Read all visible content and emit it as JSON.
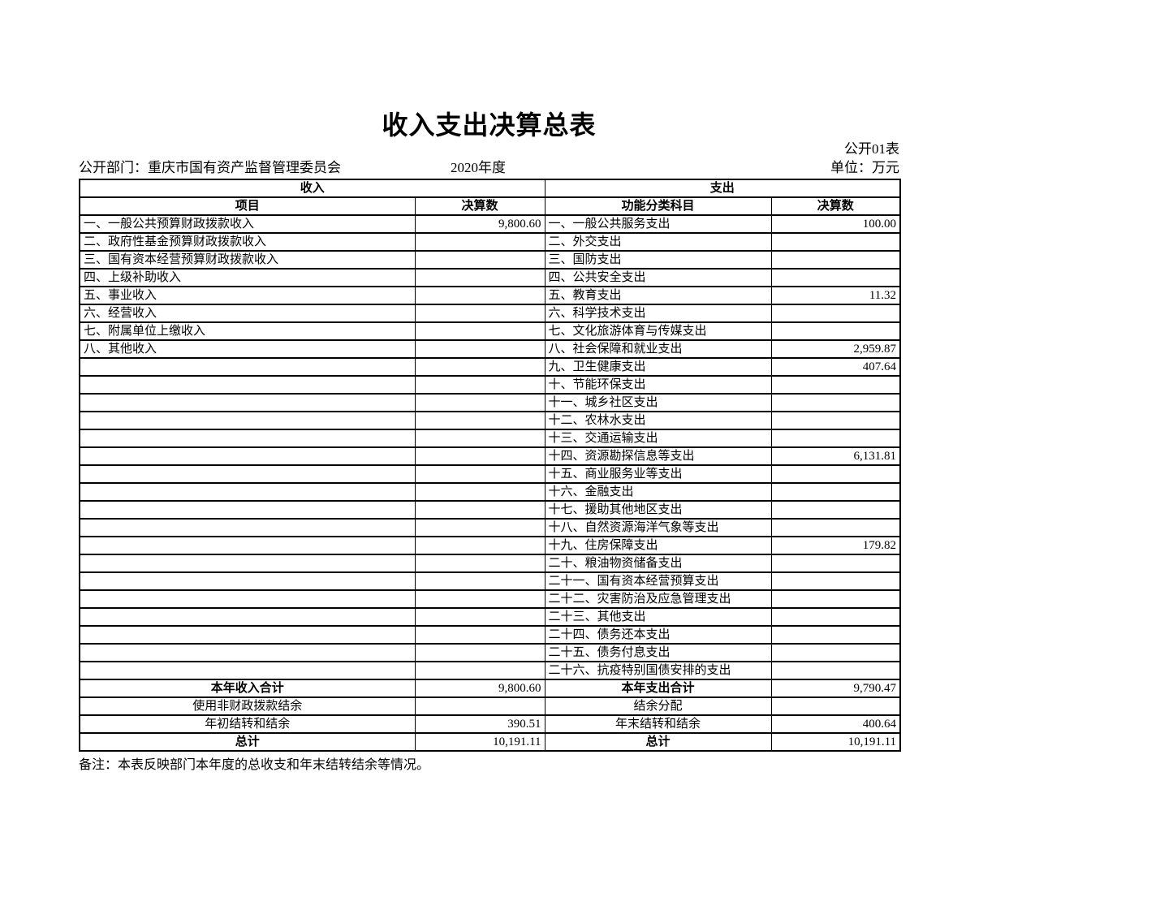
{
  "colors": {
    "text": "#000000",
    "background": "#ffffff",
    "border": "#000000"
  },
  "page": {
    "title": "收入支出决算总表",
    "table_code": "公开01表",
    "department": "公开部门：重庆市国有资产监督管理委员会",
    "year": "2020年度",
    "unit": "单位：万元",
    "note": "备注：本表反映部门本年度的总收支和年末结转结余等情况。"
  },
  "table": {
    "income_section": "收入",
    "expense_section": "支出",
    "columns": [
      "项目",
      "决算数",
      "功能分类科目",
      "决算数"
    ],
    "rows": [
      {
        "income": "一、一般公共预算财政拨款收入",
        "income_value": "9,800.60",
        "expense": "一、一般公共服务支出",
        "expense_value": "100.00"
      },
      {
        "income": "二、政府性基金预算财政拨款收入",
        "income_value": "",
        "expense": "二、外交支出",
        "expense_value": ""
      },
      {
        "income": "三、国有资本经营预算财政拨款收入",
        "income_value": "",
        "expense": "三、国防支出",
        "expense_value": ""
      },
      {
        "income": "四、上级补助收入",
        "income_value": "",
        "expense": "四、公共安全支出",
        "expense_value": ""
      },
      {
        "income": "五、事业收入",
        "income_value": "",
        "expense": "五、教育支出",
        "expense_value": "11.32"
      },
      {
        "income": "六、经营收入",
        "income_value": "",
        "expense": "六、科学技术支出",
        "expense_value": ""
      },
      {
        "income": "七、附属单位上缴收入",
        "income_value": "",
        "expense": "七、文化旅游体育与传媒支出",
        "expense_value": ""
      },
      {
        "income": "八、其他收入",
        "income_value": "",
        "expense": "八、社会保障和就业支出",
        "expense_value": "2,959.87"
      },
      {
        "income": "",
        "income_value": "",
        "expense": "九、卫生健康支出",
        "expense_value": "407.64"
      },
      {
        "income": "",
        "income_value": "",
        "expense": "十、节能环保支出",
        "expense_value": ""
      },
      {
        "income": "",
        "income_value": "",
        "expense": "十一、城乡社区支出",
        "expense_value": ""
      },
      {
        "income": "",
        "income_value": "",
        "expense": "十二、农林水支出",
        "expense_value": ""
      },
      {
        "income": "",
        "income_value": "",
        "expense": "十三、交通运输支出",
        "expense_value": ""
      },
      {
        "income": "",
        "income_value": "",
        "expense": "十四、资源勘探信息等支出",
        "expense_value": "6,131.81"
      },
      {
        "income": "",
        "income_value": "",
        "expense": "十五、商业服务业等支出",
        "expense_value": ""
      },
      {
        "income": "",
        "income_value": "",
        "expense": "十六、金融支出",
        "expense_value": ""
      },
      {
        "income": "",
        "income_value": "",
        "expense": "十七、援助其他地区支出",
        "expense_value": ""
      },
      {
        "income": "",
        "income_value": "",
        "expense": "十八、自然资源海洋气象等支出",
        "expense_value": ""
      },
      {
        "income": "",
        "income_value": "",
        "expense": "十九、住房保障支出",
        "expense_value": "179.82"
      },
      {
        "income": "",
        "income_value": "",
        "expense": "二十、粮油物资储备支出",
        "expense_value": ""
      },
      {
        "income": "",
        "income_value": "",
        "expense": "二十一、国有资本经营预算支出",
        "expense_value": ""
      },
      {
        "income": "",
        "income_value": "",
        "expense": "二十二、灾害防治及应急管理支出",
        "expense_value": ""
      },
      {
        "income": "",
        "income_value": "",
        "expense": "二十三、其他支出",
        "expense_value": ""
      },
      {
        "income": "",
        "income_value": "",
        "expense": "二十四、债务还本支出",
        "expense_value": ""
      },
      {
        "income": "",
        "income_value": "",
        "expense": "二十五、债务付息支出",
        "expense_value": ""
      },
      {
        "income": "",
        "income_value": "",
        "expense": "二十六、抗疫特别国债安排的支出",
        "expense_value": "",
        "indent": true
      }
    ],
    "summary": [
      {
        "income_label": "本年收入合计",
        "income_value": "9,800.60",
        "expense_label": "本年支出合计",
        "expense_value": "9,790.47",
        "bold": true
      },
      {
        "income_label": "使用非财政拨款结余",
        "income_value": "",
        "expense_label": "结余分配",
        "expense_value": "",
        "bold": false
      },
      {
        "income_label": "年初结转和结余",
        "income_value": "390.51",
        "expense_label": "年末结转和结余",
        "expense_value": "400.64",
        "bold": false
      },
      {
        "income_label": "总计",
        "income_value": "10,191.11",
        "expense_label": "总计",
        "expense_value": "10,191.11",
        "bold": true
      }
    ]
  }
}
